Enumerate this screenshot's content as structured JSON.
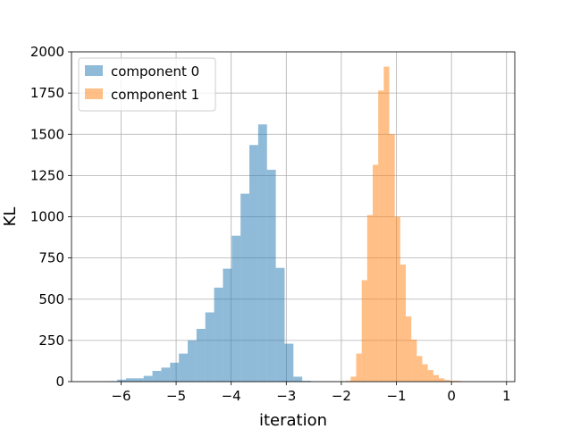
{
  "chart_data": {
    "type": "bar",
    "title": "",
    "xlabel": "iteration",
    "ylabel": "KL",
    "xlim": [
      -6.9,
      1.15
    ],
    "ylim": [
      0,
      2000
    ],
    "xticks": [
      -6,
      -5,
      -4,
      -3,
      -2,
      -1,
      0,
      1
    ],
    "xtick_labels": [
      "−6",
      "−5",
      "−4",
      "−3",
      "−2",
      "−1",
      "0",
      "1"
    ],
    "yticks": [
      0,
      250,
      500,
      750,
      1000,
      1250,
      1500,
      1750,
      2000
    ],
    "ytick_labels": [
      "0",
      "250",
      "500",
      "750",
      "1000",
      "1250",
      "1500",
      "1750",
      "2000"
    ],
    "grid": true,
    "legend_position": "top-left",
    "series": [
      {
        "name": "component 0",
        "color": "#1f77b4",
        "opacity": 0.5,
        "bin_edges": [
          -6.55,
          -6.39,
          -6.23,
          -6.07,
          -5.91,
          -5.75,
          -5.59,
          -5.43,
          -5.27,
          -5.11,
          -4.95,
          -4.79,
          -4.63,
          -4.47,
          -4.31,
          -4.15,
          -3.99,
          -3.83,
          -3.67,
          -3.51,
          -3.35,
          -3.19,
          -3.03,
          -2.87,
          -2.71,
          -2.55,
          -2.39
        ],
        "values": [
          1,
          2,
          3,
          12,
          20,
          20,
          35,
          65,
          85,
          115,
          170,
          250,
          320,
          420,
          570,
          685,
          885,
          1140,
          1435,
          1560,
          1285,
          690,
          230,
          30,
          5,
          0
        ]
      },
      {
        "name": "component 1",
        "color": "#ff7f0e",
        "opacity": 0.5,
        "bin_edges": [
          -1.93,
          -1.83,
          -1.73,
          -1.63,
          -1.53,
          -1.43,
          -1.33,
          -1.23,
          -1.13,
          -1.03,
          -0.93,
          -0.83,
          -0.73,
          -0.63,
          -0.53,
          -0.43,
          -0.33,
          -0.23,
          -0.13,
          -0.03,
          0.07,
          0.17,
          0.27,
          0.37
        ],
        "values": [
          5,
          30,
          170,
          615,
          1010,
          1315,
          1765,
          1910,
          1500,
          1000,
          710,
          395,
          255,
          155,
          105,
          70,
          40,
          20,
          10,
          5,
          5,
          2,
          1
        ]
      }
    ]
  }
}
